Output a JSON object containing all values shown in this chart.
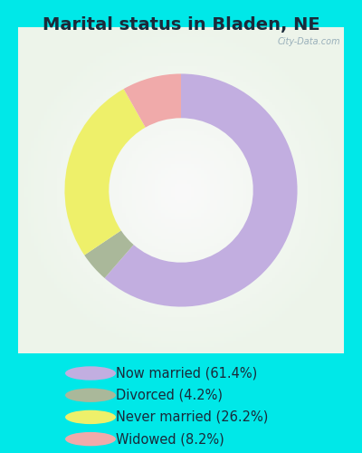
{
  "title": "Marital status in Bladen, NE",
  "slices": [
    61.4,
    4.2,
    26.2,
    8.2
  ],
  "labels": [
    "Now married (61.4%)",
    "Divorced (4.2%)",
    "Never married (26.2%)",
    "Widowed (8.2%)"
  ],
  "colors": [
    "#c2aee0",
    "#aab89a",
    "#eef06a",
    "#f0aaaa"
  ],
  "legend_colors": [
    "#c2aee0",
    "#aab89a",
    "#eef06a",
    "#f0aaaa"
  ],
  "start_angle": 90,
  "background_outer": "#00e8e8",
  "background_chart": "#e8f5ee",
  "title_fontsize": 14,
  "legend_fontsize": 10.5,
  "watermark": "City-Data.com",
  "donut_width": 0.38
}
